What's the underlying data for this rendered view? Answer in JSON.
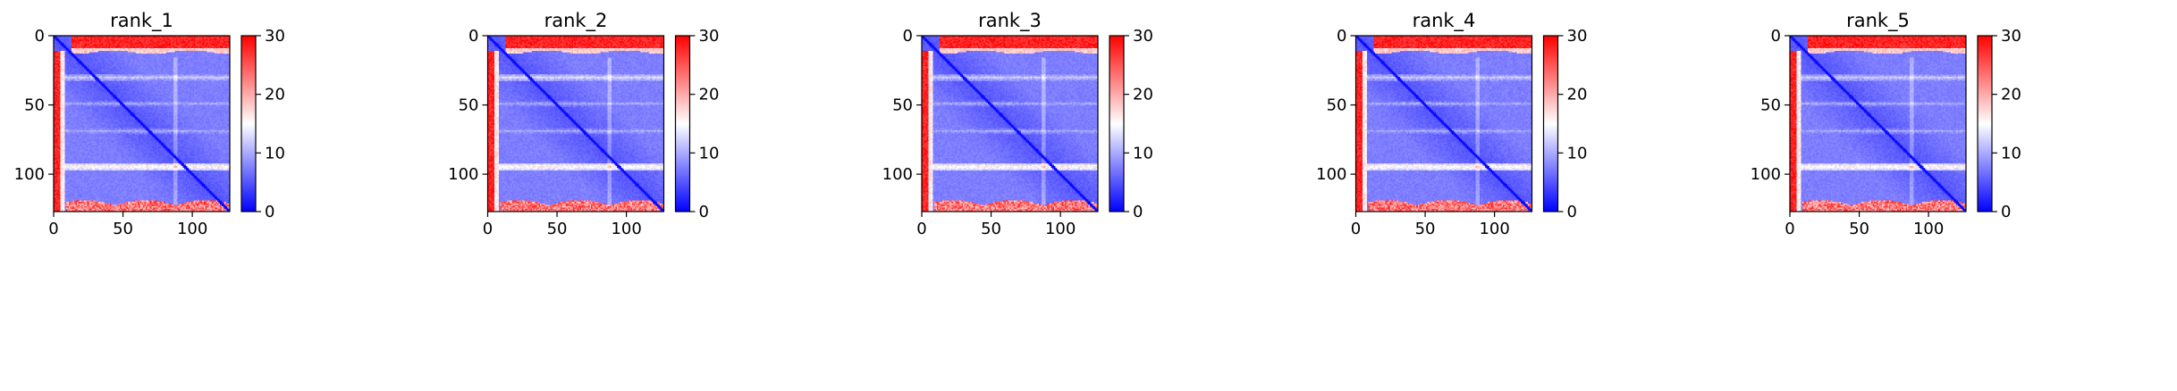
{
  "chart_data": [
    {
      "type": "heatmap",
      "title": "rank_1",
      "x_ticks": [
        "0",
        "50",
        "100"
      ],
      "y_ticks": [
        "0",
        "50",
        "100"
      ],
      "xlim": [
        0,
        127
      ],
      "ylim": [
        127,
        0
      ],
      "y_inverted": true,
      "colorbar": {
        "ticks": [
          "0",
          "10",
          "20",
          "30"
        ],
        "range": [
          0,
          30
        ],
        "colormap": "bwr"
      },
      "pattern": {
        "diagonal_value": 0,
        "body_value": 5,
        "edge_value": 30,
        "edge_rows_top": 12,
        "edge_rows_bottom": 6,
        "edge_cols_left": 8,
        "white_band_rows": [
          30,
          49,
          69,
          95
        ],
        "white_band_values": [
          12,
          10,
          10,
          16
        ]
      }
    },
    {
      "type": "heatmap",
      "title": "rank_2",
      "x_ticks": [
        "0",
        "50",
        "100"
      ],
      "y_ticks": [
        "0",
        "50",
        "100"
      ],
      "xlim": [
        0,
        127
      ],
      "ylim": [
        127,
        0
      ],
      "y_inverted": true,
      "colorbar": {
        "ticks": [
          "0",
          "10",
          "20",
          "30"
        ],
        "range": [
          0,
          30
        ],
        "colormap": "bwr"
      },
      "pattern": {
        "diagonal_value": 0,
        "body_value": 5,
        "edge_value": 30,
        "edge_rows_top": 12,
        "edge_rows_bottom": 6,
        "edge_cols_left": 8,
        "white_band_rows": [
          30,
          49,
          69,
          95
        ],
        "white_band_values": [
          13,
          10,
          10,
          16
        ]
      }
    },
    {
      "type": "heatmap",
      "title": "rank_3",
      "x_ticks": [
        "0",
        "50",
        "100"
      ],
      "y_ticks": [
        "0",
        "50",
        "100"
      ],
      "xlim": [
        0,
        127
      ],
      "ylim": [
        127,
        0
      ],
      "y_inverted": true,
      "colorbar": {
        "ticks": [
          "0",
          "10",
          "20",
          "30"
        ],
        "range": [
          0,
          30
        ],
        "colormap": "bwr"
      },
      "pattern": {
        "diagonal_value": 0,
        "body_value": 5,
        "edge_value": 30,
        "edge_rows_top": 12,
        "edge_rows_bottom": 6,
        "edge_cols_left": 8,
        "white_band_rows": [
          30,
          49,
          69,
          95
        ],
        "white_band_values": [
          12,
          10,
          10,
          16
        ]
      }
    },
    {
      "type": "heatmap",
      "title": "rank_4",
      "x_ticks": [
        "0",
        "50",
        "100"
      ],
      "y_ticks": [
        "0",
        "50",
        "100"
      ],
      "xlim": [
        0,
        127
      ],
      "ylim": [
        127,
        0
      ],
      "y_inverted": true,
      "colorbar": {
        "ticks": [
          "0",
          "10",
          "20",
          "30"
        ],
        "range": [
          0,
          30
        ],
        "colormap": "bwr"
      },
      "pattern": {
        "diagonal_value": 0,
        "body_value": 5,
        "edge_value": 30,
        "edge_rows_top": 12,
        "edge_rows_bottom": 6,
        "edge_cols_left": 8,
        "white_band_rows": [
          30,
          49,
          69,
          95
        ],
        "white_band_values": [
          12,
          10,
          10,
          16
        ]
      }
    },
    {
      "type": "heatmap",
      "title": "rank_5",
      "x_ticks": [
        "0",
        "50",
        "100"
      ],
      "y_ticks": [
        "0",
        "50",
        "100"
      ],
      "xlim": [
        0,
        127
      ],
      "ylim": [
        127,
        0
      ],
      "y_inverted": true,
      "colorbar": {
        "ticks": [
          "0",
          "10",
          "20",
          "30"
        ],
        "range": [
          0,
          30
        ],
        "colormap": "bwr"
      },
      "pattern": {
        "diagonal_value": 0,
        "body_value": 5,
        "edge_value": 30,
        "edge_rows_top": 12,
        "edge_rows_bottom": 6,
        "edge_cols_left": 8,
        "white_band_rows": [
          30,
          49,
          69,
          95
        ],
        "white_band_values": [
          12,
          10,
          10,
          16
        ]
      }
    }
  ]
}
